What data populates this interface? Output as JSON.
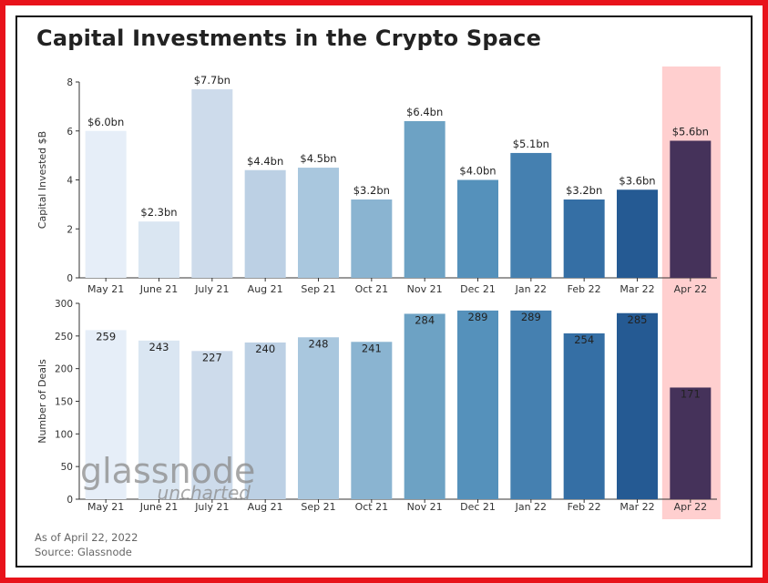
{
  "title": "Capital Investments in the Crypto Space",
  "footnote": {
    "as_of": "As of April 22, 2022",
    "source": "Source: Glassnode"
  },
  "watermark": {
    "brand": "glassnode",
    "sub": "uncharted"
  },
  "colors": {
    "border": "#e8131b",
    "highlight_band": "#ffcfcf",
    "bars": [
      "#e6eef8",
      "#dae6f2",
      "#cddbeb",
      "#bcd0e4",
      "#a9c7de",
      "#8ab4d1",
      "#6da2c4",
      "#5591bb",
      "#4580b0",
      "#356fa5",
      "#255a93",
      "#45325a"
    ]
  },
  "chart_data": [
    {
      "type": "bar",
      "title": "",
      "xlabel": "",
      "ylabel": "Capital Invested $B",
      "ylim": [
        0,
        8
      ],
      "yticks": [
        0,
        2,
        4,
        6,
        8
      ],
      "categories": [
        "May 21",
        "June 21",
        "July 21",
        "Aug 21",
        "Sep 21",
        "Oct 21",
        "Nov 21",
        "Dec 21",
        "Jan 22",
        "Feb 22",
        "Mar 22",
        "Apr 22"
      ],
      "values": [
        6.0,
        2.3,
        7.7,
        4.4,
        4.5,
        3.2,
        6.4,
        4.0,
        5.1,
        3.2,
        3.6,
        5.6
      ],
      "data_labels": [
        "$6.0bn",
        "$2.3bn",
        "$7.7bn",
        "$4.4bn",
        "$4.5bn",
        "$3.2bn",
        "$6.4bn",
        "$4.0bn",
        "$5.1bn",
        "$3.2bn",
        "$3.6bn",
        "$5.6bn"
      ],
      "highlight_category": "Apr 22",
      "grid": false
    },
    {
      "type": "bar",
      "title": "",
      "xlabel": "",
      "ylabel": "Number of Deals",
      "ylim": [
        0,
        300
      ],
      "yticks": [
        0,
        50,
        100,
        150,
        200,
        250,
        300
      ],
      "categories": [
        "May 21",
        "June 21",
        "July 21",
        "Aug 21",
        "Sep 21",
        "Oct 21",
        "Nov 21",
        "Dec 21",
        "Jan 22",
        "Feb 22",
        "Mar 22",
        "Apr 22"
      ],
      "values": [
        259,
        243,
        227,
        240,
        248,
        241,
        284,
        289,
        289,
        254,
        285,
        171
      ],
      "data_labels": [
        "259",
        "243",
        "227",
        "240",
        "248",
        "241",
        "284",
        "289",
        "289",
        "254",
        "285",
        "171"
      ],
      "highlight_category": "Apr 22",
      "grid": false
    }
  ]
}
